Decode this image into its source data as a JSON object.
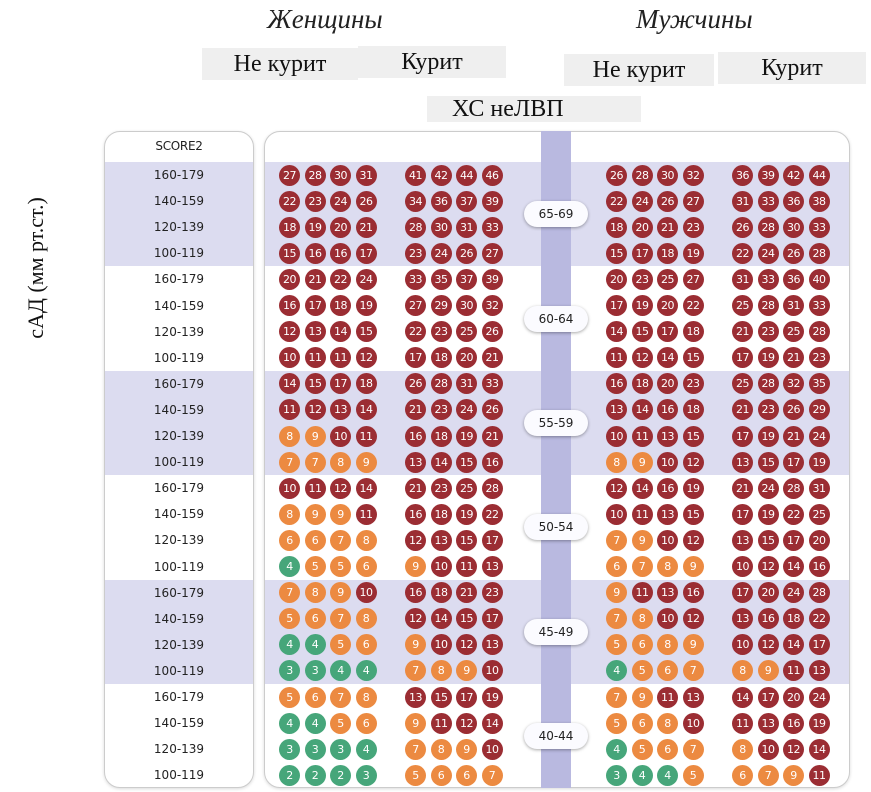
{
  "header": {
    "women_title": "Женщины",
    "men_title": "Мужчины",
    "non_smoker": "Не курит",
    "smoker": "Курит",
    "cholesterol_title": "ХС неЛВП"
  },
  "colors": {
    "very_high": "#9b2d33",
    "high": "#ec8a41",
    "moderate": "#46a67a",
    "band": "#dcdcf0",
    "age_bar": "#b9b9e0"
  },
  "chart_data": {
    "type": "heatmap",
    "title": "",
    "ylabel": "сАД (мм рт.ст.)",
    "score_label": "SCORE2",
    "sbp_labels": [
      "160-179",
      "140-159",
      "120-139",
      "100-119"
    ],
    "groups": [
      "Женщины · Не курит",
      "Женщины · Курит",
      "Мужчины · Не курит",
      "Мужчины · Курит"
    ],
    "age_blocks": [
      {
        "age": "65-69",
        "values": [
          [
            [
              27,
              28,
              30,
              31
            ],
            [
              41,
              42,
              44,
              46
            ],
            [
              26,
              28,
              30,
              32
            ],
            [
              36,
              39,
              42,
              44
            ]
          ],
          [
            [
              22,
              23,
              24,
              26
            ],
            [
              34,
              36,
              37,
              39
            ],
            [
              22,
              24,
              26,
              27
            ],
            [
              31,
              33,
              36,
              38
            ]
          ],
          [
            [
              18,
              19,
              20,
              21
            ],
            [
              28,
              30,
              31,
              33
            ],
            [
              18,
              20,
              21,
              23
            ],
            [
              26,
              28,
              30,
              33
            ]
          ],
          [
            [
              15,
              16,
              16,
              17
            ],
            [
              23,
              24,
              26,
              27
            ],
            [
              15,
              17,
              18,
              19
            ],
            [
              22,
              24,
              26,
              28
            ]
          ]
        ]
      },
      {
        "age": "60-64",
        "values": [
          [
            [
              20,
              21,
              22,
              24
            ],
            [
              33,
              35,
              37,
              39
            ],
            [
              20,
              23,
              25,
              27
            ],
            [
              31,
              33,
              36,
              40
            ]
          ],
          [
            [
              16,
              17,
              18,
              19
            ],
            [
              27,
              29,
              30,
              32
            ],
            [
              17,
              19,
              20,
              22
            ],
            [
              25,
              28,
              31,
              33
            ]
          ],
          [
            [
              12,
              13,
              14,
              15
            ],
            [
              22,
              23,
              25,
              26
            ],
            [
              14,
              15,
              17,
              18
            ],
            [
              21,
              23,
              25,
              28
            ]
          ],
          [
            [
              10,
              11,
              11,
              12
            ],
            [
              17,
              18,
              20,
              21
            ],
            [
              11,
              12,
              14,
              15
            ],
            [
              17,
              19,
              21,
              23
            ]
          ]
        ]
      },
      {
        "age": "55-59",
        "values": [
          [
            [
              14,
              15,
              17,
              18
            ],
            [
              26,
              28,
              31,
              33
            ],
            [
              16,
              18,
              20,
              23
            ],
            [
              25,
              28,
              32,
              35
            ]
          ],
          [
            [
              11,
              12,
              13,
              14
            ],
            [
              21,
              23,
              24,
              26
            ],
            [
              13,
              14,
              16,
              18
            ],
            [
              21,
              23,
              26,
              29
            ]
          ],
          [
            [
              8,
              9,
              10,
              11
            ],
            [
              16,
              18,
              19,
              21
            ],
            [
              10,
              11,
              13,
              15
            ],
            [
              17,
              19,
              21,
              24
            ]
          ],
          [
            [
              7,
              7,
              8,
              9
            ],
            [
              13,
              14,
              15,
              16
            ],
            [
              8,
              9,
              10,
              12
            ],
            [
              13,
              15,
              17,
              19
            ]
          ]
        ]
      },
      {
        "age": "50-54",
        "values": [
          [
            [
              10,
              11,
              12,
              14
            ],
            [
              21,
              23,
              25,
              28
            ],
            [
              12,
              14,
              16,
              19
            ],
            [
              21,
              24,
              28,
              31
            ]
          ],
          [
            [
              8,
              9,
              9,
              11
            ],
            [
              16,
              18,
              19,
              22
            ],
            [
              10,
              11,
              13,
              15
            ],
            [
              17,
              19,
              22,
              25
            ]
          ],
          [
            [
              6,
              6,
              7,
              8
            ],
            [
              12,
              13,
              15,
              17
            ],
            [
              7,
              9,
              10,
              12
            ],
            [
              13,
              15,
              17,
              20
            ]
          ],
          [
            [
              4,
              5,
              5,
              6
            ],
            [
              9,
              10,
              11,
              13
            ],
            [
              6,
              7,
              8,
              9
            ],
            [
              10,
              12,
              14,
              16
            ]
          ]
        ]
      },
      {
        "age": "45-49",
        "values": [
          [
            [
              7,
              8,
              9,
              10
            ],
            [
              16,
              18,
              21,
              23
            ],
            [
              9,
              11,
              13,
              16
            ],
            [
              17,
              20,
              24,
              28
            ]
          ],
          [
            [
              5,
              6,
              7,
              8
            ],
            [
              12,
              14,
              15,
              17
            ],
            [
              7,
              8,
              10,
              12
            ],
            [
              13,
              16,
              18,
              22
            ]
          ],
          [
            [
              4,
              4,
              5,
              6
            ],
            [
              9,
              10,
              12,
              13
            ],
            [
              5,
              6,
              8,
              9
            ],
            [
              10,
              12,
              14,
              17
            ]
          ],
          [
            [
              3,
              3,
              4,
              4
            ],
            [
              7,
              8,
              9,
              10
            ],
            [
              4,
              5,
              6,
              7
            ],
            [
              8,
              9,
              11,
              13
            ]
          ]
        ]
      },
      {
        "age": "40-44",
        "values": [
          [
            [
              5,
              6,
              7,
              8
            ],
            [
              13,
              15,
              17,
              19
            ],
            [
              7,
              9,
              11,
              13
            ],
            [
              14,
              17,
              20,
              24
            ]
          ],
          [
            [
              4,
              4,
              5,
              6
            ],
            [
              9,
              11,
              12,
              14
            ],
            [
              5,
              6,
              8,
              10
            ],
            [
              11,
              13,
              16,
              19
            ]
          ],
          [
            [
              3,
              3,
              3,
              4
            ],
            [
              7,
              8,
              9,
              10
            ],
            [
              4,
              5,
              6,
              7
            ],
            [
              8,
              10,
              12,
              14
            ]
          ],
          [
            [
              2,
              2,
              2,
              3
            ],
            [
              5,
              6,
              6,
              7
            ],
            [
              3,
              4,
              4,
              5
            ],
            [
              6,
              7,
              9,
              11
            ]
          ]
        ]
      }
    ]
  }
}
